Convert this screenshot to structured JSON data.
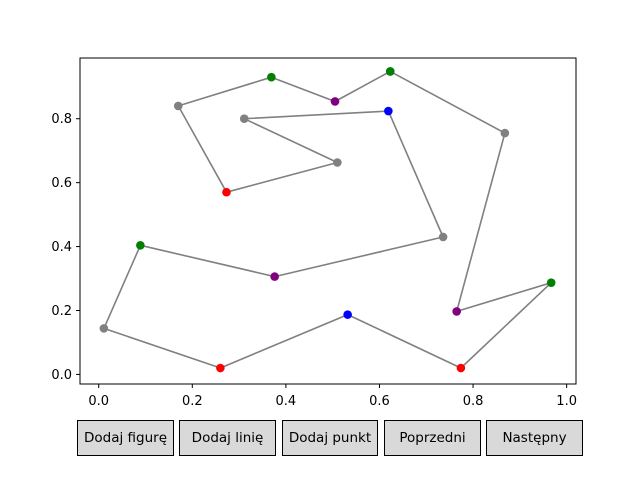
{
  "toolbar": {
    "buttons": [
      {
        "label": "Dodaj figurę"
      },
      {
        "label": "Dodaj linię"
      },
      {
        "label": "Dodaj punkt"
      },
      {
        "label": "Poprzedni"
      },
      {
        "label": "Następny"
      }
    ]
  },
  "chart_data": {
    "type": "line",
    "title": "",
    "xlabel": "",
    "ylabel": "",
    "xlim": [
      -0.04,
      1.02
    ],
    "ylim": [
      -0.03,
      0.99
    ],
    "xticks": [
      "0.0",
      "0.2",
      "0.4",
      "0.6",
      "0.8",
      "1.0"
    ],
    "yticks": [
      "0.0",
      "0.2",
      "0.4",
      "0.6",
      "0.8"
    ],
    "grid": false,
    "line_color": "#808080",
    "colors": {
      "green": "#008000",
      "gray": "#808080",
      "purple": "#800080",
      "blue": "#0000ff",
      "red": "#ff0000"
    },
    "points": [
      {
        "x": 0.623,
        "y": 0.948,
        "color": "green"
      },
      {
        "x": 0.868,
        "y": 0.755,
        "color": "gray"
      },
      {
        "x": 0.765,
        "y": 0.197,
        "color": "purple"
      },
      {
        "x": 0.967,
        "y": 0.287,
        "color": "green"
      },
      {
        "x": 0.774,
        "y": 0.02,
        "color": "red"
      },
      {
        "x": 0.532,
        "y": 0.187,
        "color": "blue"
      },
      {
        "x": 0.26,
        "y": 0.02,
        "color": "red"
      },
      {
        "x": 0.011,
        "y": 0.144,
        "color": "gray"
      },
      {
        "x": 0.089,
        "y": 0.404,
        "color": "green"
      },
      {
        "x": 0.376,
        "y": 0.306,
        "color": "purple"
      },
      {
        "x": 0.736,
        "y": 0.43,
        "color": "gray"
      },
      {
        "x": 0.619,
        "y": 0.824,
        "color": "blue"
      },
      {
        "x": 0.311,
        "y": 0.8,
        "color": "gray"
      },
      {
        "x": 0.51,
        "y": 0.663,
        "color": "gray"
      },
      {
        "x": 0.273,
        "y": 0.57,
        "color": "red"
      },
      {
        "x": 0.17,
        "y": 0.84,
        "color": "gray"
      },
      {
        "x": 0.369,
        "y": 0.93,
        "color": "green"
      },
      {
        "x": 0.505,
        "y": 0.854,
        "color": "purple"
      },
      {
        "x": 0.623,
        "y": 0.948,
        "color": "green"
      }
    ]
  }
}
